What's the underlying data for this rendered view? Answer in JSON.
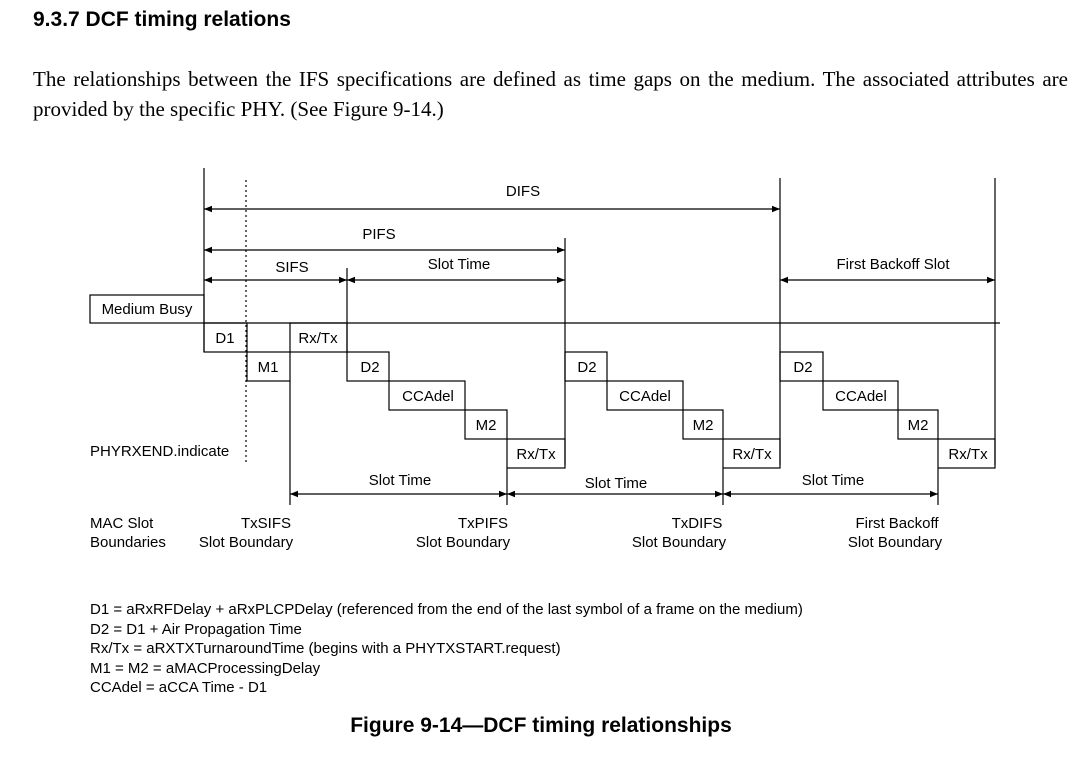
{
  "section": {
    "heading": "9.3.7 DCF timing relations",
    "paragraph": "The relationships between the IFS specifications are defined as time gaps on the medium. The associated attributes are provided by the specific PHY. (See Figure 9-14.)"
  },
  "figure": {
    "labels": {
      "difs": "DIFS",
      "pifs": "PIFS",
      "sifs": "SIFS",
      "slot_time_top": "Slot Time",
      "first_backoff_slot": "First Backoff Slot",
      "medium_busy": "Medium Busy",
      "d1": "D1",
      "m1": "M1",
      "rxtx_1": "Rx/Tx",
      "d2_1": "D2",
      "ccadel_1": "CCAdel",
      "m2_1": "M2",
      "rxtx_2": "Rx/Tx",
      "d2_2": "D2",
      "ccadel_2": "CCAdel",
      "m2_2": "M2",
      "rxtx_3": "Rx/Tx",
      "d2_3": "D2",
      "ccadel_3": "CCAdel",
      "m2_3": "M2",
      "rxtx_4": "Rx/Tx",
      "phyrxend": "PHYRXEND.indicate",
      "slot_time_1": "Slot Time",
      "slot_time_2": "Slot Time",
      "slot_time_3": "Slot Time",
      "mac_slot_line1": "MAC Slot",
      "mac_slot_line2": "Boundaries",
      "txsifs_line1": "TxSIFS",
      "txsifs_line2": "Slot Boundary",
      "txpifs_line1": "TxPIFS",
      "txpifs_line2": "Slot Boundary",
      "txdifs_line1": "TxDIFS",
      "txdifs_line2": "Slot Boundary",
      "firstbackoff_line1": "First Backoff",
      "firstbackoff_line2": "Slot Boundary"
    },
    "legend": [
      "D1 = aRxRFDelay + aRxPLCPDelay (referenced from the end of the last symbol of a frame on the medium)",
      "D2 = D1 + Air Propagation Time",
      "Rx/Tx = aRXTXTurnaroundTime (begins with a PHYTXSTART.request)",
      "M1 = M2 = aMACProcessingDelay",
      "CCAdel = aCCA Time - D1"
    ],
    "caption": "Figure 9-14—DCF timing relationships"
  }
}
